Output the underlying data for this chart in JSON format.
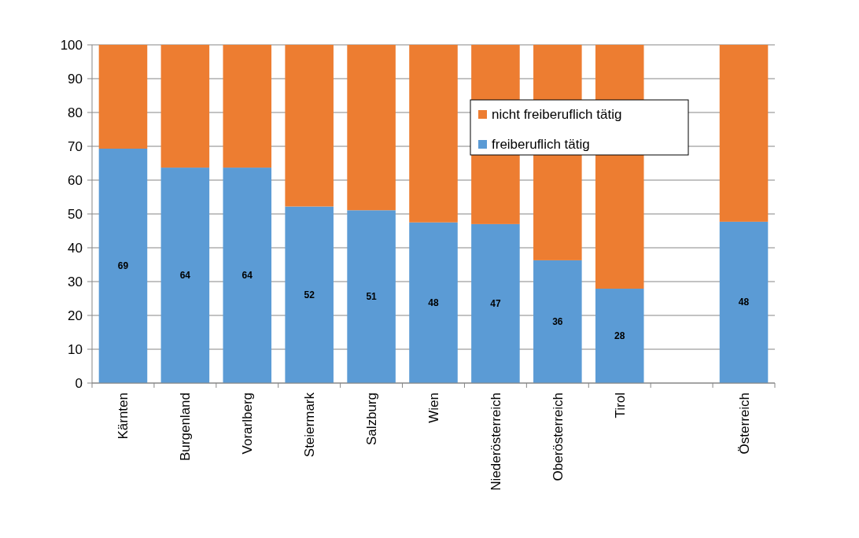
{
  "chart_data": {
    "type": "bar",
    "stacked": true,
    "categories": [
      "Kärnten",
      "Burgenland",
      "Vorarlberg",
      "Steiermark",
      "Salzburg",
      "Wien",
      "Niederösterreich",
      "Oberösterreich",
      "Tirol",
      null,
      "Österreich"
    ],
    "series": [
      {
        "name": "freiberuflich tätig",
        "color": "#5b9bd5",
        "values": [
          69.3,
          63.7,
          63.7,
          52.2,
          51.1,
          47.5,
          47.0,
          36.3,
          27.9,
          null,
          47.7
        ],
        "value_labels": [
          "69",
          "64",
          "64",
          "52",
          "51",
          "48",
          "47",
          "36",
          "28",
          null,
          "48"
        ]
      },
      {
        "name": "nicht freiberuflich tätig",
        "color": "#ed7d31",
        "values": [
          30.7,
          36.3,
          36.3,
          47.8,
          48.9,
          52.5,
          53.0,
          63.7,
          72.1,
          null,
          52.3
        ]
      }
    ],
    "ylim": [
      0,
      100
    ],
    "yticks": [
      0,
      10,
      20,
      30,
      40,
      50,
      60,
      70,
      80,
      90,
      100
    ],
    "grid": "y",
    "legend": "top right"
  }
}
